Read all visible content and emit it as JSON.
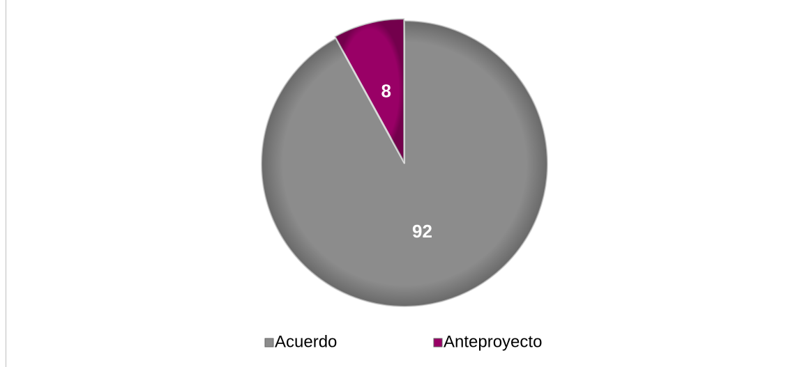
{
  "chart_data": {
    "type": "pie",
    "categories": [
      "Acuerdo",
      "Anteproyecto"
    ],
    "values": [
      92,
      8
    ],
    "colors": [
      "#8c8c8c",
      "#990066"
    ],
    "legend": "bottom"
  }
}
